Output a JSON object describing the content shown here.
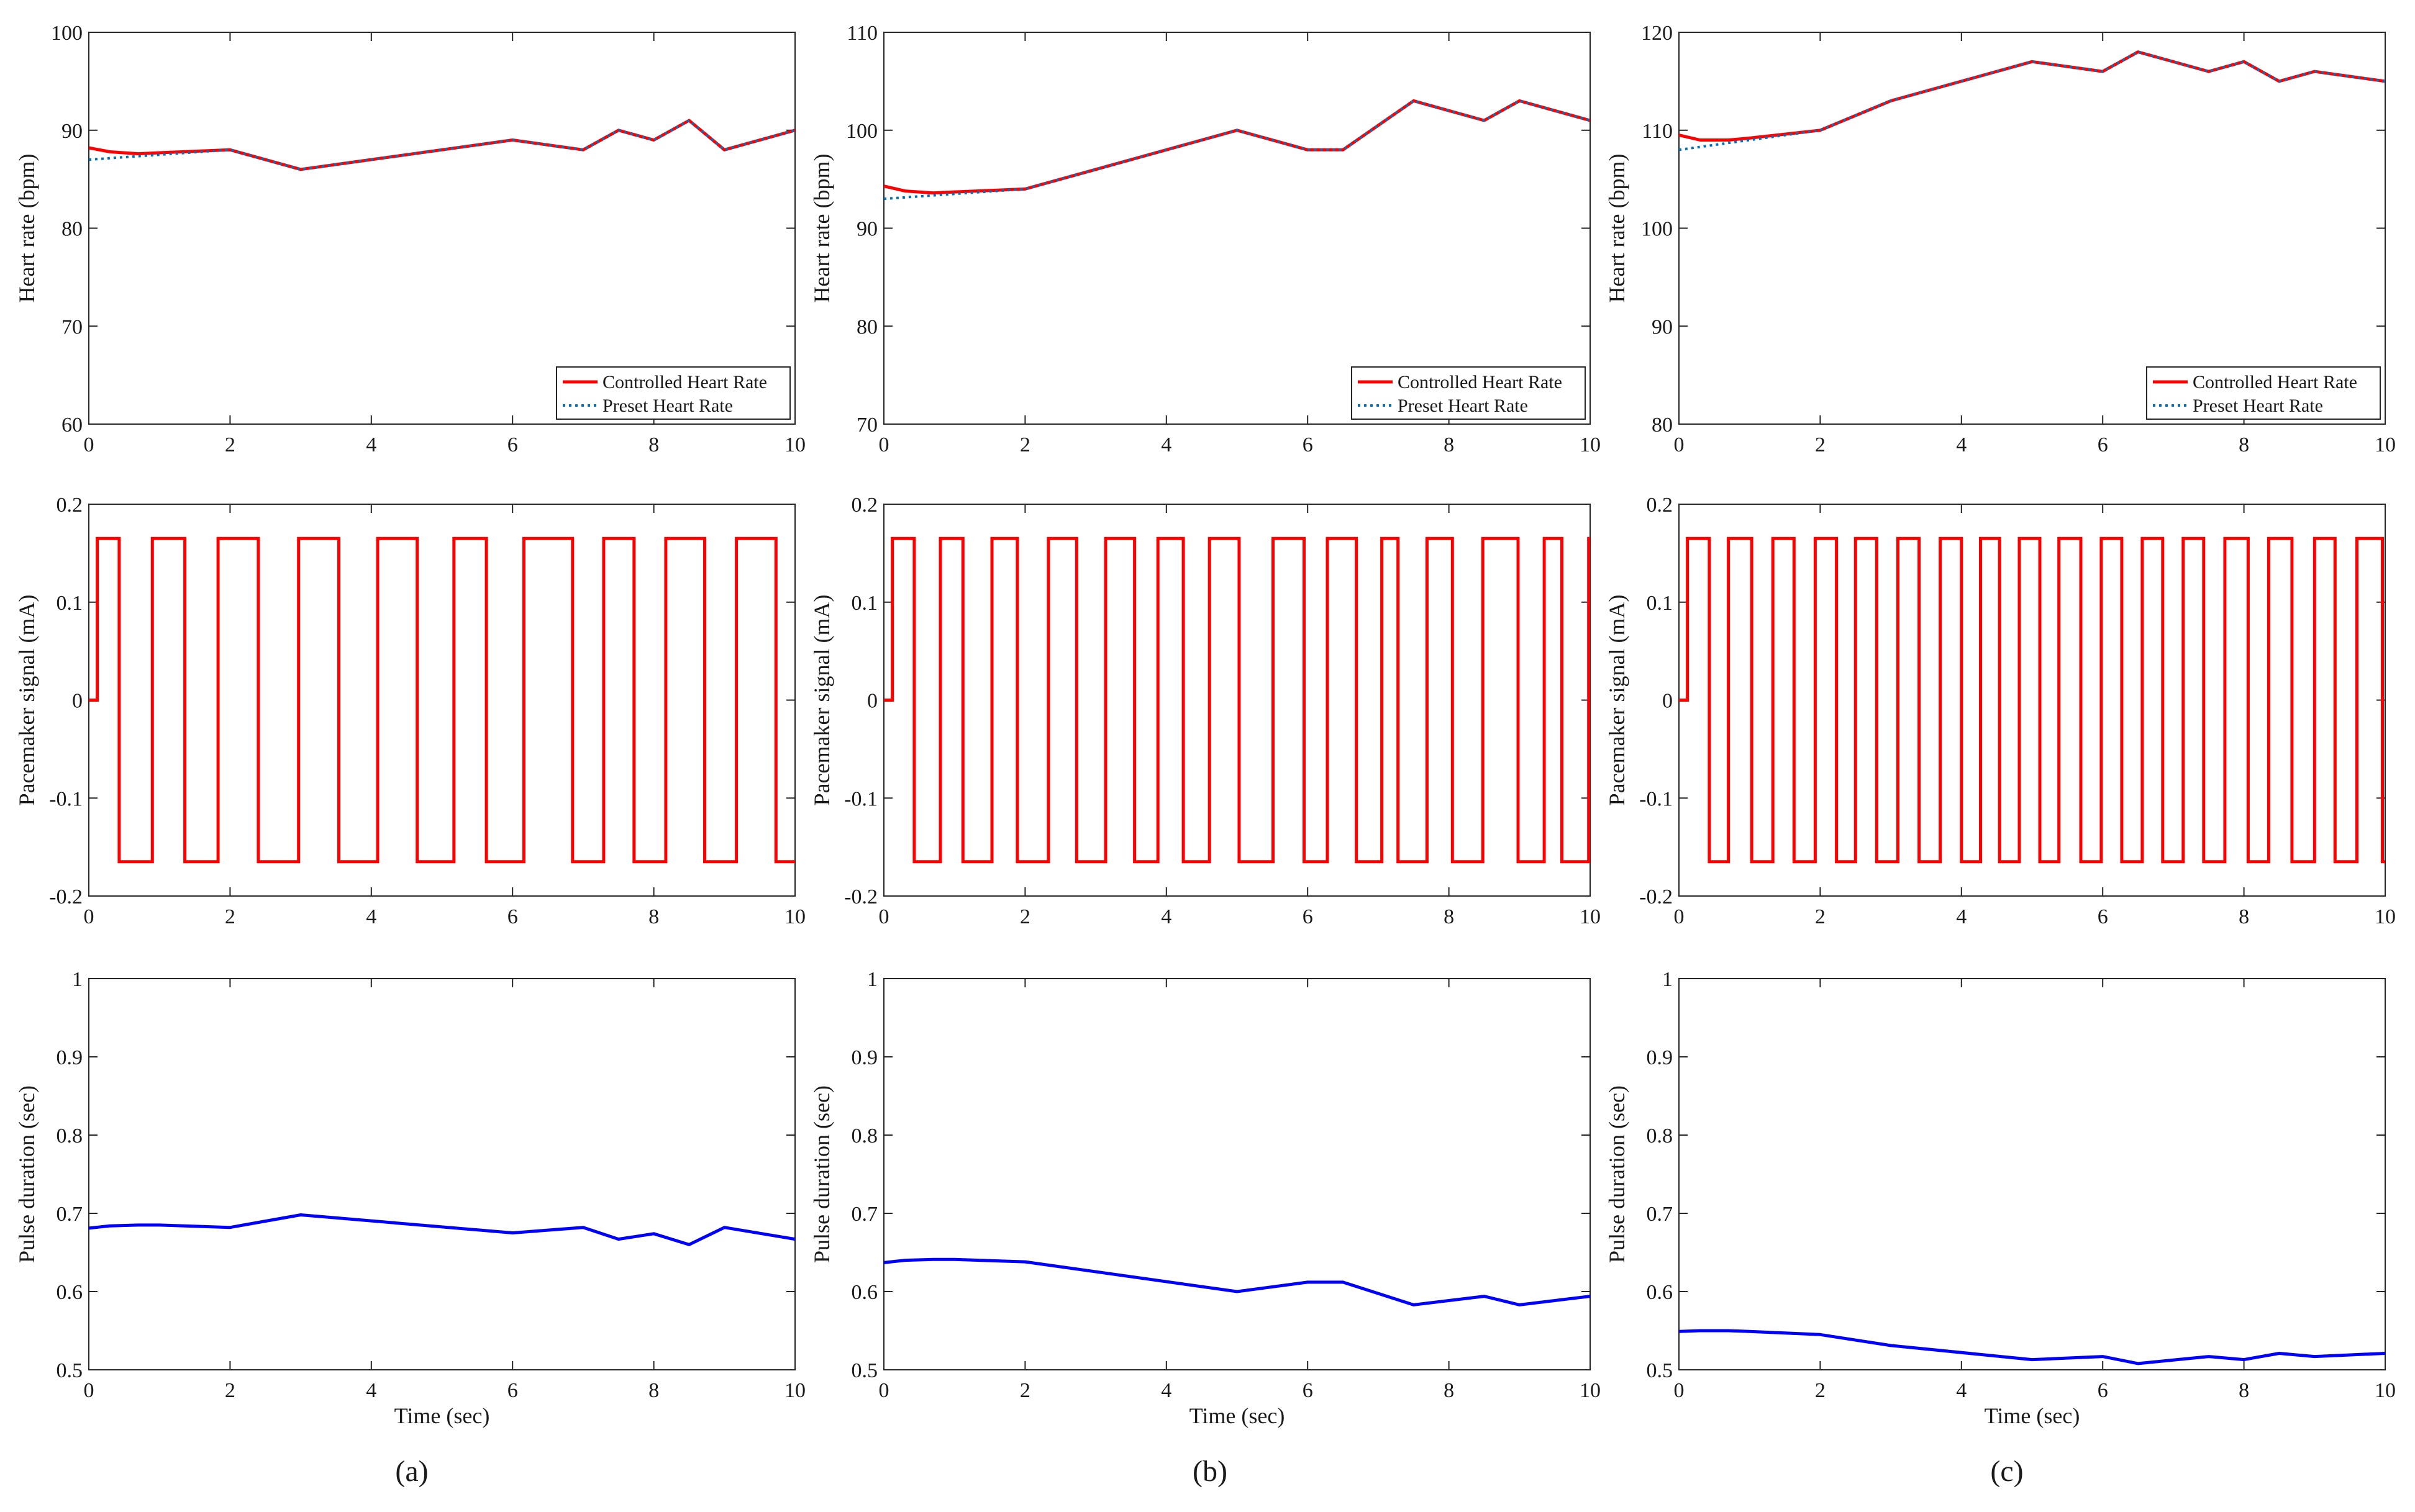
{
  "chart_data": [
    {
      "id": "hr-a",
      "type": "line",
      "row": 0,
      "col": 0,
      "ylabel": "Heart rate (bpm)",
      "xlabel": "",
      "xlim": [
        0,
        10
      ],
      "ylim": [
        60,
        100
      ],
      "xticks": [
        0,
        2,
        4,
        6,
        8,
        10
      ],
      "yticks": [
        60,
        70,
        80,
        90,
        100
      ],
      "legend": {
        "position": "bottom-right",
        "entries": [
          "Controlled Heart Rate",
          "Preset Heart Rate"
        ]
      },
      "series": [
        {
          "name": "Controlled Heart Rate",
          "color": "#ff0000",
          "style": "solid",
          "x": [
            0,
            0.3,
            0.7,
            1,
            2,
            3,
            6,
            7,
            7.5,
            8,
            8.5,
            9,
            10
          ],
          "y": [
            88.2,
            87.8,
            87.6,
            87.7,
            88,
            86,
            89,
            88,
            90,
            89,
            91,
            88,
            90
          ]
        },
        {
          "name": "Preset Heart Rate",
          "color": "#0072bd",
          "style": "dotted",
          "x": [
            0,
            2,
            3,
            6,
            7,
            7.5,
            8,
            8.5,
            9,
            10
          ],
          "y": [
            87,
            88,
            86,
            89,
            88,
            90,
            89,
            91,
            88,
            90
          ]
        }
      ]
    },
    {
      "id": "hr-b",
      "type": "line",
      "row": 0,
      "col": 1,
      "ylabel": "Heart rate (bpm)",
      "xlabel": "",
      "xlim": [
        0,
        10
      ],
      "ylim": [
        70,
        110
      ],
      "xticks": [
        0,
        2,
        4,
        6,
        8,
        10
      ],
      "yticks": [
        70,
        80,
        90,
        100,
        110
      ],
      "legend": {
        "position": "bottom-right",
        "entries": [
          "Controlled Heart Rate",
          "Preset Heart Rate"
        ]
      },
      "series": [
        {
          "name": "Controlled Heart Rate",
          "color": "#ff0000",
          "style": "solid",
          "x": [
            0,
            0.3,
            0.7,
            1,
            2,
            5,
            6,
            6.5,
            7.5,
            8.5,
            9,
            10
          ],
          "y": [
            94.3,
            93.8,
            93.6,
            93.7,
            94,
            100,
            98,
            98,
            103,
            101,
            103,
            101
          ]
        },
        {
          "name": "Preset Heart Rate",
          "color": "#0072bd",
          "style": "dotted",
          "x": [
            0,
            2,
            5,
            6,
            6.5,
            7.5,
            8.5,
            9,
            10
          ],
          "y": [
            93,
            94,
            100,
            98,
            98,
            103,
            101,
            103,
            101
          ]
        }
      ]
    },
    {
      "id": "hr-c",
      "type": "line",
      "row": 0,
      "col": 2,
      "ylabel": "Heart rate (bpm)",
      "xlabel": "",
      "xlim": [
        0,
        10
      ],
      "ylim": [
        80,
        120
      ],
      "xticks": [
        0,
        2,
        4,
        6,
        8,
        10
      ],
      "yticks": [
        80,
        90,
        100,
        110,
        120
      ],
      "legend": {
        "position": "bottom-right",
        "entries": [
          "Controlled Heart Rate",
          "Preset Heart Rate"
        ]
      },
      "series": [
        {
          "name": "Controlled Heart Rate",
          "color": "#ff0000",
          "style": "solid",
          "x": [
            0,
            0.3,
            0.7,
            1,
            2,
            3,
            5,
            6,
            6.5,
            7.5,
            8,
            8.5,
            9,
            10
          ],
          "y": [
            109.5,
            109,
            109,
            109.2,
            110,
            113,
            117,
            116,
            118,
            116,
            117,
            115,
            116,
            115
          ]
        },
        {
          "name": "Preset Heart Rate",
          "color": "#0072bd",
          "style": "dotted",
          "x": [
            0,
            2,
            3,
            5,
            6,
            6.5,
            7.5,
            8,
            8.5,
            9,
            10
          ],
          "y": [
            108,
            110,
            113,
            117,
            116,
            118,
            116,
            117,
            115,
            116,
            115
          ]
        }
      ]
    },
    {
      "id": "pm-a",
      "type": "line",
      "row": 1,
      "col": 0,
      "ylabel": "Pacemaker signal (mA)",
      "xlabel": "",
      "xlim": [
        0,
        10
      ],
      "ylim": [
        -0.2,
        0.2
      ],
      "xticks": [
        0,
        2,
        4,
        6,
        8,
        10
      ],
      "yticks": [
        -0.2,
        -0.1,
        0,
        0.1,
        0.2
      ],
      "square_wave": {
        "color": "#ff0000",
        "amplitude": 0.165,
        "start": 0.12,
        "end": 10,
        "transitions": [
          0.43,
          0.9,
          1.36,
          1.83,
          2.4,
          2.97,
          3.54,
          4.09,
          4.65,
          5.17,
          5.63,
          6.16,
          6.85,
          7.29,
          7.72,
          8.17,
          8.72,
          9.17,
          9.73
        ]
      }
    },
    {
      "id": "pm-b",
      "type": "line",
      "row": 1,
      "col": 1,
      "ylabel": "Pacemaker signal (mA)",
      "xlabel": "",
      "xlim": [
        0,
        10
      ],
      "ylim": [
        -0.2,
        0.2
      ],
      "xticks": [
        0,
        2,
        4,
        6,
        8,
        10
      ],
      "yticks": [
        -0.2,
        -0.1,
        0,
        0.1,
        0.2
      ],
      "square_wave": {
        "color": "#ff0000",
        "amplitude": 0.165,
        "start": 0.12,
        "end": 10,
        "transitions": [
          0.43,
          0.8,
          1.12,
          1.53,
          1.89,
          2.33,
          2.73,
          3.14,
          3.55,
          3.88,
          4.24,
          4.61,
          5.03,
          5.51,
          5.95,
          6.28,
          6.69,
          7.05,
          7.28,
          7.69,
          8.05,
          8.48,
          8.98,
          9.35,
          9.6,
          9.98
        ]
      }
    },
    {
      "id": "pm-c",
      "type": "line",
      "row": 1,
      "col": 2,
      "ylabel": "Pacemaker signal (mA)",
      "xlabel": "",
      "xlim": [
        0,
        10
      ],
      "ylim": [
        -0.2,
        0.2
      ],
      "xticks": [
        0,
        2,
        4,
        6,
        8,
        10
      ],
      "yticks": [
        -0.2,
        -0.1,
        0,
        0.1,
        0.2
      ],
      "square_wave": {
        "color": "#ff0000",
        "amplitude": 0.165,
        "start": 0.12,
        "end": 10,
        "transitions": [
          0.43,
          0.7,
          1.03,
          1.33,
          1.63,
          1.93,
          2.23,
          2.5,
          2.8,
          3.1,
          3.4,
          3.7,
          4.0,
          4.27,
          4.54,
          4.82,
          5.11,
          5.38,
          5.69,
          5.98,
          6.27,
          6.56,
          6.85,
          7.14,
          7.43,
          7.73,
          8.06,
          8.35,
          8.68,
          9.0,
          9.29,
          9.6,
          9.96
        ]
      }
    },
    {
      "id": "pd-a",
      "type": "line",
      "row": 2,
      "col": 0,
      "ylabel": "Pulse duration (sec)",
      "xlabel": "Time (sec)",
      "xlim": [
        0,
        10
      ],
      "ylim": [
        0.5,
        1
      ],
      "xticks": [
        0,
        2,
        4,
        6,
        8,
        10
      ],
      "yticks": [
        0.5,
        0.6,
        0.7,
        0.8,
        0.9,
        1
      ],
      "series": [
        {
          "name": "Pulse duration",
          "color": "#0000ff",
          "style": "solid",
          "x": [
            0,
            0.3,
            0.7,
            1,
            2,
            3,
            6,
            7,
            7.5,
            8,
            8.5,
            9,
            10
          ],
          "y": [
            0.681,
            0.684,
            0.685,
            0.685,
            0.682,
            0.698,
            0.675,
            0.682,
            0.667,
            0.674,
            0.66,
            0.682,
            0.667
          ]
        }
      ]
    },
    {
      "id": "pd-b",
      "type": "line",
      "row": 2,
      "col": 1,
      "ylabel": "Pulse duration (sec)",
      "xlabel": "Time (sec)",
      "xlim": [
        0,
        10
      ],
      "ylim": [
        0.5,
        1
      ],
      "xticks": [
        0,
        2,
        4,
        6,
        8,
        10
      ],
      "yticks": [
        0.5,
        0.6,
        0.7,
        0.8,
        0.9,
        1
      ],
      "series": [
        {
          "name": "Pulse duration",
          "color": "#0000ff",
          "style": "solid",
          "x": [
            0,
            0.3,
            0.7,
            1,
            2,
            5,
            6,
            6.5,
            7.5,
            8.5,
            9,
            10
          ],
          "y": [
            0.637,
            0.64,
            0.641,
            0.641,
            0.638,
            0.6,
            0.612,
            0.612,
            0.583,
            0.594,
            0.583,
            0.594
          ]
        }
      ]
    },
    {
      "id": "pd-c",
      "type": "line",
      "row": 2,
      "col": 2,
      "ylabel": "Pulse duration (sec)",
      "xlabel": "Time (sec)",
      "xlim": [
        0,
        10
      ],
      "ylim": [
        0.5,
        1
      ],
      "xticks": [
        0,
        2,
        4,
        6,
        8,
        10
      ],
      "yticks": [
        0.5,
        0.6,
        0.7,
        0.8,
        0.9,
        1
      ],
      "series": [
        {
          "name": "Pulse duration",
          "color": "#0000ff",
          "style": "solid",
          "x": [
            0,
            0.3,
            0.7,
            1,
            2,
            3,
            5,
            6,
            6.5,
            7.5,
            8,
            8.5,
            9,
            10
          ],
          "y": [
            0.549,
            0.55,
            0.55,
            0.549,
            0.545,
            0.531,
            0.513,
            0.517,
            0.508,
            0.517,
            0.513,
            0.521,
            0.517,
            0.521
          ]
        }
      ]
    }
  ],
  "panel_captions": [
    "(a)",
    "(b)",
    "(c)"
  ]
}
